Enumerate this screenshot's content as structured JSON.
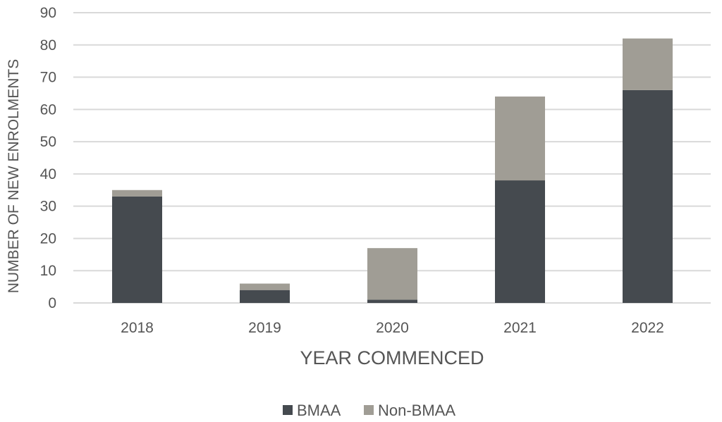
{
  "chart_data": {
    "type": "bar",
    "stacked": true,
    "categories": [
      "2018",
      "2019",
      "2020",
      "2021",
      "2022"
    ],
    "series": [
      {
        "name": "BMAA",
        "values": [
          33,
          4,
          1,
          38,
          66
        ],
        "color": "#454a4f"
      },
      {
        "name": "Non-BMAA",
        "values": [
          2,
          2,
          16,
          26,
          16
        ],
        "color": "#a09d95"
      }
    ],
    "title": "",
    "xlabel": "YEAR COMMENCED",
    "ylabel": "NUMBER OF NEW ENROLMENTS",
    "ylim": [
      0,
      90
    ],
    "yticks": [
      0,
      10,
      20,
      30,
      40,
      50,
      60,
      70,
      80,
      90
    ],
    "grid": true,
    "legend_position": "bottom"
  }
}
